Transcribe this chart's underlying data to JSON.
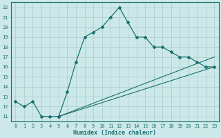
{
  "xlabel": "Humidex (Indice chaleur)",
  "bg_color": "#cce8e8",
  "line_color": "#1a7070",
  "grid_color": "#aacccc",
  "xlim": [
    -0.5,
    23.5
  ],
  "ylim": [
    10.5,
    22.5
  ],
  "xticks": [
    0,
    1,
    2,
    3,
    4,
    5,
    6,
    7,
    8,
    9,
    10,
    11,
    12,
    13,
    14,
    15,
    16,
    17,
    18,
    19,
    20,
    21,
    22,
    23
  ],
  "yticks": [
    11,
    12,
    13,
    14,
    15,
    16,
    17,
    18,
    19,
    20,
    21,
    22
  ],
  "main_x": [
    0,
    1,
    2,
    3,
    4,
    5,
    5,
    6,
    7,
    8,
    9,
    10,
    11,
    12,
    13,
    14,
    15,
    16,
    17,
    18,
    19,
    20,
    21,
    22,
    23
  ],
  "main_y": [
    12.5,
    12.0,
    12.5,
    11.0,
    11.0,
    11.0,
    11.0,
    13.5,
    16.5,
    19.0,
    19.5,
    20.0,
    21.0,
    22.0,
    20.5,
    19.0,
    19.0,
    18.0,
    18.0,
    17.5,
    17.0,
    17.0,
    16.5,
    16.0,
    16.0
  ],
  "line2_x": [
    5,
    23
  ],
  "line2_y": [
    11.0,
    16.0
  ],
  "line3_x": [
    5,
    23
  ],
  "line3_y": [
    11.0,
    17.0
  ]
}
